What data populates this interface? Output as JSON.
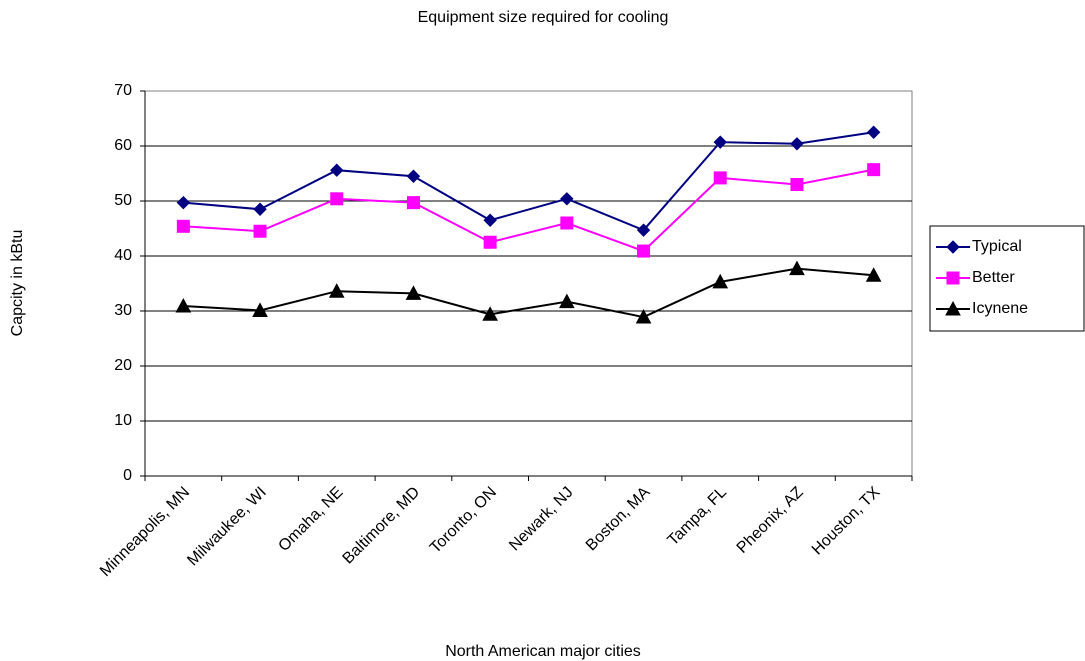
{
  "chart_data": {
    "type": "line",
    "title": "Equipment size required for cooling",
    "x_label": "North American major cities",
    "y_label": "Capcity in kBtu",
    "categories": [
      "Minneapolis, MN",
      "Milwaukee, WI",
      "Omaha, NE",
      "Baltimore, MD",
      "Toronto, ON",
      "Newark, NJ",
      "Boston, MA",
      "Tampa, FL",
      "Pheonix, AZ",
      "Houston, TX"
    ],
    "series": [
      {
        "name": "Typical",
        "color": "#000080",
        "marker": "diamond",
        "values": [
          49.7,
          48.5,
          55.6,
          54.5,
          46.5,
          50.4,
          44.7,
          60.7,
          60.4,
          62.5
        ]
      },
      {
        "name": "Better",
        "color": "#ff00ff",
        "marker": "square",
        "values": [
          45.4,
          44.5,
          50.4,
          49.7,
          42.5,
          46,
          40.9,
          54.2,
          53,
          55.7
        ]
      },
      {
        "name": "Icynene",
        "color": "#000000",
        "marker": "triangle",
        "values": [
          30.9,
          30.1,
          33.6,
          33.2,
          29.4,
          31.7,
          28.9,
          35.3,
          37.7,
          36.5
        ]
      }
    ],
    "ylim": [
      0,
      70
    ],
    "yticks": [
      0,
      10,
      20,
      30,
      40,
      50,
      60,
      70
    ],
    "grid": true,
    "legend": "right"
  }
}
